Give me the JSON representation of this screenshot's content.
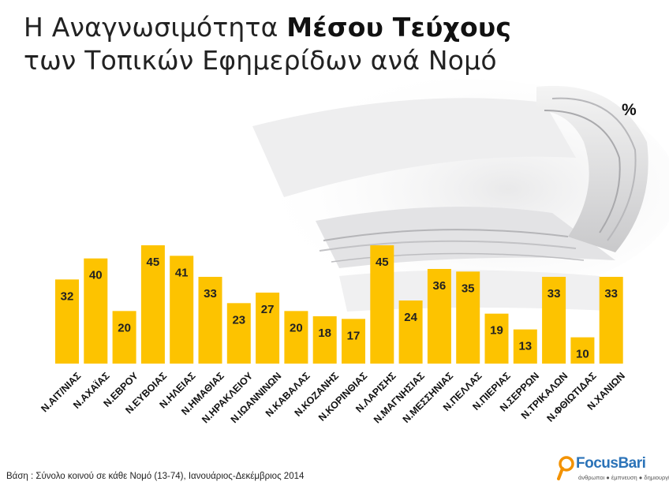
{
  "title": {
    "line1_normal": "Η Αναγνωσιμότητα ",
    "line1_bold": "Μέσου Τεύχους",
    "line2": "των Τοπικών Εφημερίδων ανά Νομό"
  },
  "unit_label": "%",
  "footnote": "Βάση : Σύνολο κοινού σε κάθε Νομό (13-74), Ιανουάριος-Δεκέμβριος 2014",
  "brand": {
    "name": "FocusBari",
    "tagline": "άνθρωποι ● έμπνευση ● δημιουργία",
    "colors": {
      "blue": "#2b73b8",
      "orange": "#f39200"
    }
  },
  "colors": {
    "bar": "#fdc300",
    "text": "#222222"
  },
  "chart_data": {
    "type": "bar",
    "title": "Η Αναγνωσιμότητα Μέσου Τεύχους των Τοπικών Εφημερίδων ανά Νομό",
    "ylabel": "%",
    "xlabel": "",
    "ylim": [
      0,
      50
    ],
    "grid": false,
    "categories": [
      "Ν.ΑΙΤ/ΝΙΑΣ",
      "Ν.ΑΧΑΪΑΣ",
      "Ν.ΕΒΡΟΥ",
      "Ν.ΕΥΒΟΙΑΣ",
      "Ν.ΗΛΕΙΑΣ",
      "Ν.ΗΜΑΘΙΑΣ",
      "Ν.ΗΡΑΚΛΕΙΟΥ",
      "Ν.ΙΩΑΝΝΙΝΩΝ",
      "Ν.ΚΑΒΑΛΑΣ",
      "Ν.ΚΟΖΑΝΗΣ",
      "Ν.ΚΟΡΙΝΘΙΑΣ",
      "Ν.ΛΑΡΙΣΗΣ",
      "Ν.ΜΑΓΝΗΣΙΑΣ",
      "Ν.ΜΕΣΣΗΝΙΑΣ",
      "Ν.ΠΕΛΛΑΣ",
      "Ν.ΠΙΕΡΙΑΣ",
      "Ν.ΣΕΡΡΩΝ",
      "Ν.ΤΡΙΚΑΛΩΝ",
      "Ν.ΦΘΙΩΤΙΔΑΣ",
      "Ν.ΧΑΝΙΩΝ"
    ],
    "values": [
      32,
      40,
      20,
      45,
      41,
      33,
      23,
      27,
      20,
      18,
      17,
      45,
      24,
      36,
      35,
      19,
      13,
      33,
      10,
      33
    ]
  }
}
